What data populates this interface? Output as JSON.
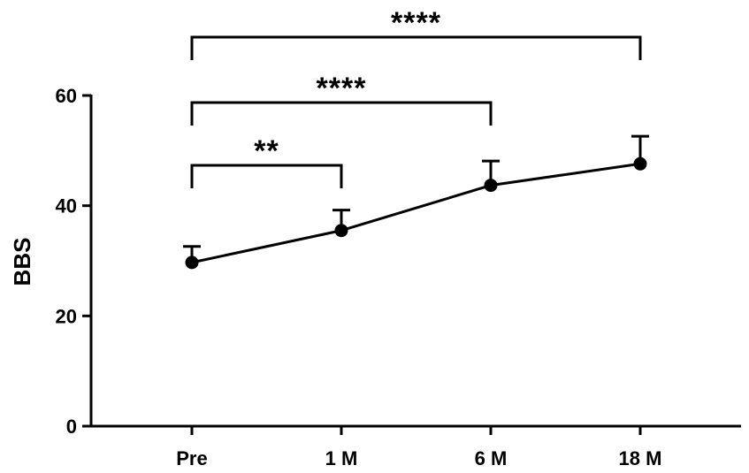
{
  "chart_data": {
    "type": "line",
    "title": "",
    "xlabel": "",
    "ylabel": "BBS",
    "categories": [
      "Pre",
      "1 M",
      "6 M",
      "18 M"
    ],
    "series": [
      {
        "values": [
          29.7,
          35.5,
          43.7,
          47.6
        ],
        "error_upper": [
          2.9,
          3.7,
          4.4,
          5.0
        ],
        "color": "#000000"
      }
    ],
    "ylim": [
      0,
      60
    ],
    "yticks": [
      0,
      20,
      40,
      60
    ],
    "grid": false,
    "legend": "none",
    "significance": [
      {
        "from": "Pre",
        "to": "1 M",
        "label": "**"
      },
      {
        "from": "Pre",
        "to": "6 M",
        "label": "****"
      },
      {
        "from": "Pre",
        "to": "18 M",
        "label": "****"
      }
    ]
  }
}
